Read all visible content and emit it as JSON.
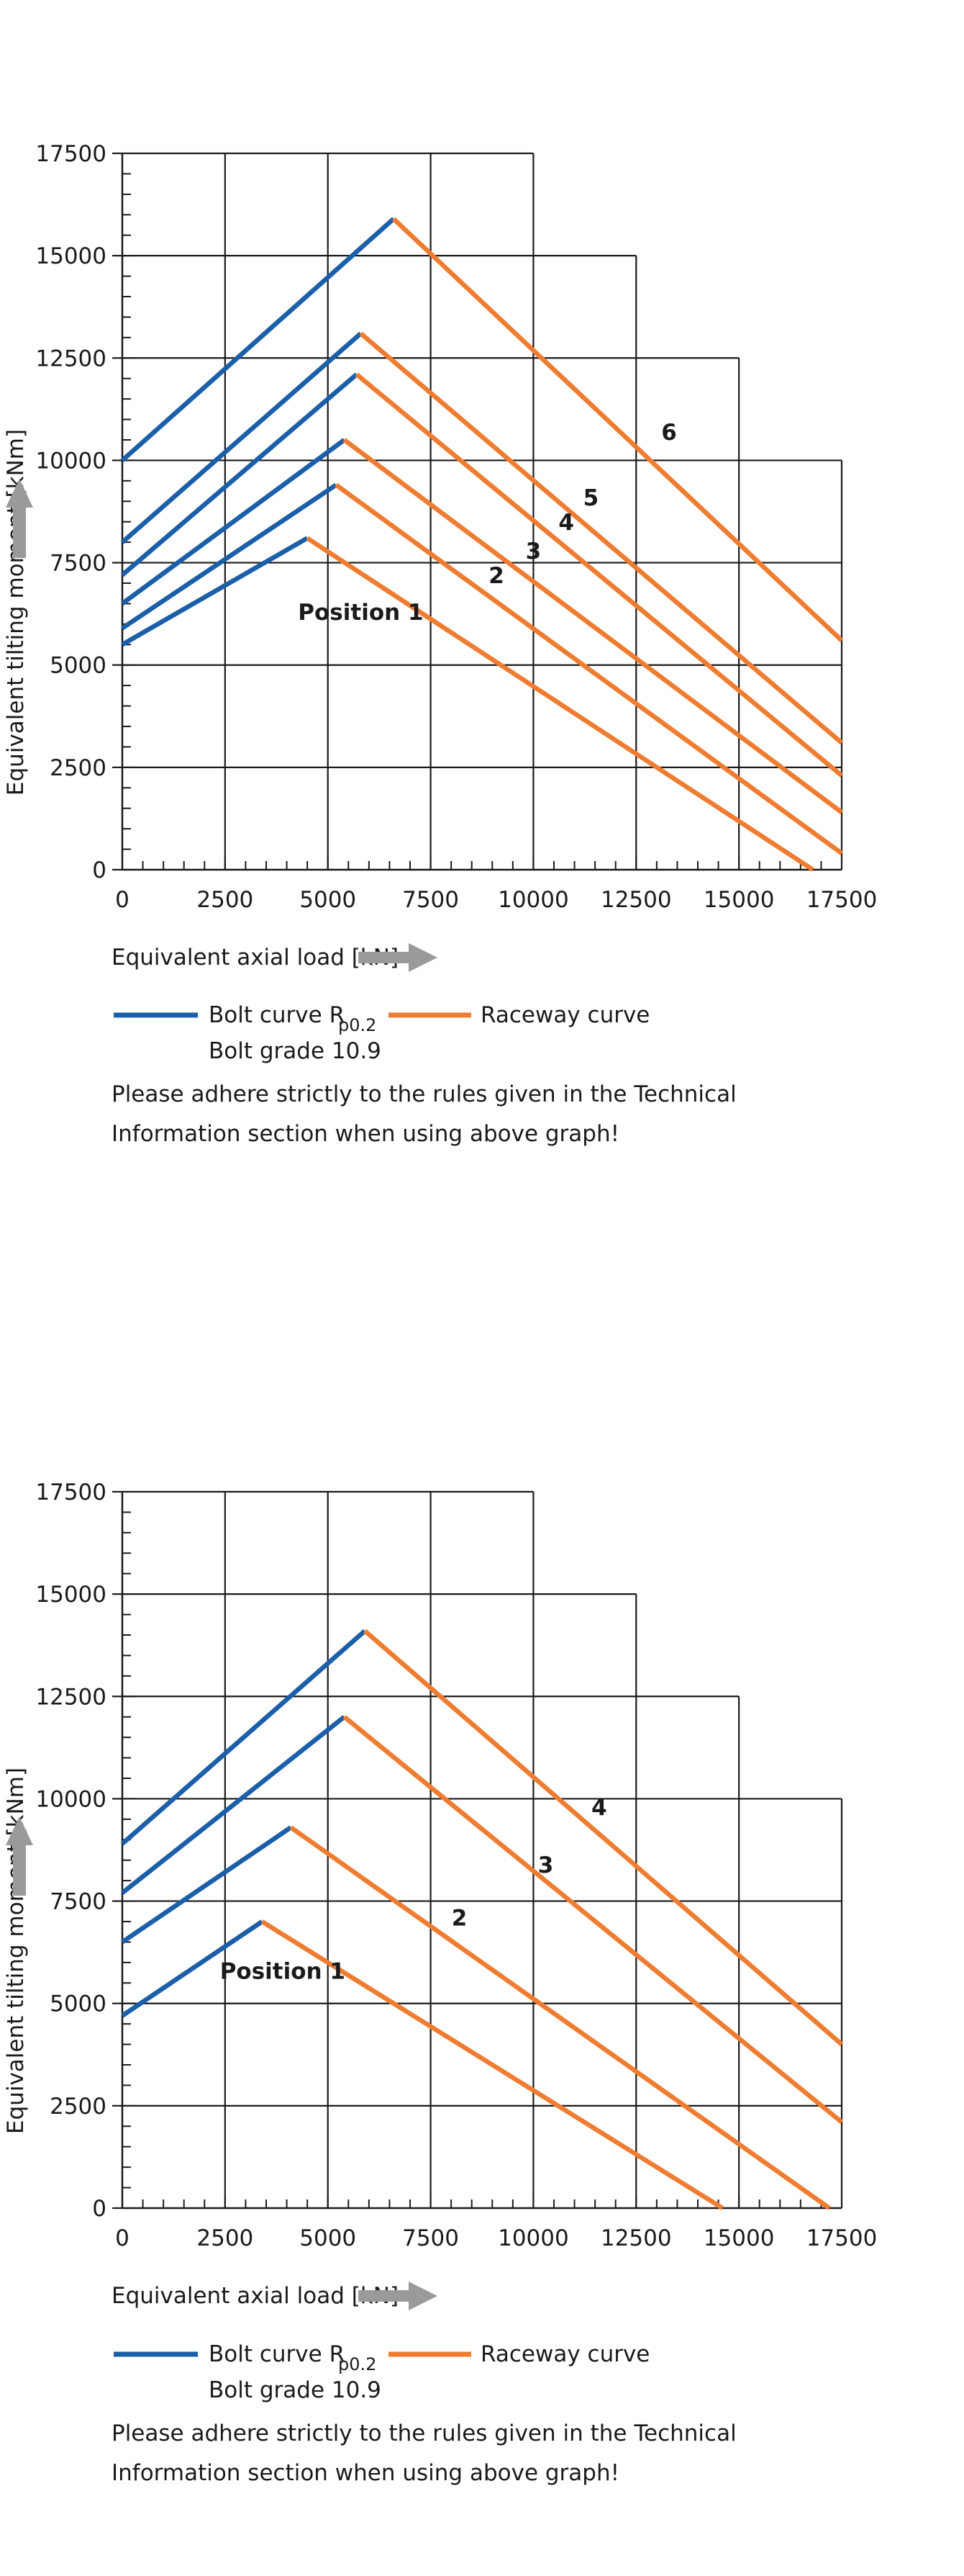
{
  "chart_data": [
    {
      "type": "line",
      "xlabel": "Equivalent axial load [kN]",
      "ylabel": "Equivalent tilting moment [kNm]",
      "xlim": [
        0,
        17500
      ],
      "ylim": [
        0,
        17500
      ],
      "x_ticks": [
        "0",
        "2500",
        "5000",
        "7500",
        "10000",
        "12500",
        "15000",
        "17500"
      ],
      "y_ticks": [
        "0",
        "2500",
        "5000",
        "7500",
        "10000",
        "12500",
        "15000",
        "17500"
      ],
      "grid": "stepped",
      "grid_x_tops": [
        17500,
        17500,
        17500,
        17500,
        17500,
        15000,
        12500,
        10000
      ],
      "series": [
        {
          "name": "Position 1",
          "bolt": [
            [
              0,
              5500
            ],
            [
              4500,
              8100
            ]
          ],
          "raceway": [
            [
              4500,
              8100
            ],
            [
              16800,
              0
            ]
          ]
        },
        {
          "name": "2",
          "bolt": [
            [
              0,
              5900
            ],
            [
              5200,
              9400
            ]
          ],
          "raceway": [
            [
              5200,
              9400
            ],
            [
              17500,
              400
            ]
          ]
        },
        {
          "name": "3",
          "bolt": [
            [
              0,
              6500
            ],
            [
              5400,
              10500
            ]
          ],
          "raceway": [
            [
              5400,
              10500
            ],
            [
              17500,
              1400
            ]
          ]
        },
        {
          "name": "4",
          "bolt": [
            [
              0,
              7200
            ],
            [
              5700,
              12100
            ]
          ],
          "raceway": [
            [
              5700,
              12100
            ],
            [
              17500,
              2300
            ]
          ]
        },
        {
          "name": "5",
          "bolt": [
            [
              0,
              8000
            ],
            [
              5800,
              13100
            ]
          ],
          "raceway": [
            [
              5800,
              13100
            ],
            [
              17500,
              3100
            ]
          ]
        },
        {
          "name": "6",
          "bolt": [
            [
              0,
              10000
            ],
            [
              6600,
              15900
            ]
          ],
          "raceway": [
            [
              6600,
              15900
            ],
            [
              17500,
              5600
            ]
          ]
        }
      ],
      "curve_labels": [
        {
          "text": "Position 1",
          "x": 5800,
          "y": 6100
        },
        {
          "text": "2",
          "x": 9100,
          "y": 7000
        },
        {
          "text": "3",
          "x": 10000,
          "y": 7600
        },
        {
          "text": "4",
          "x": 10800,
          "y": 8300
        },
        {
          "text": "5",
          "x": 11400,
          "y": 8900
        },
        {
          "text": "6",
          "x": 13300,
          "y": 10500
        }
      ],
      "legend": {
        "bolt_label": "Bolt curve  R",
        "bolt_subscript": "p0.2",
        "bolt_grade": "Bolt grade 10.9",
        "raceway_label": "Raceway curve",
        "bolt_color": "#1a5fa8",
        "raceway_color": "#ee7d31"
      },
      "note_line1": "Please adhere strictly to the rules given in the Technical",
      "note_line2": "Information section when using above graph!"
    },
    {
      "type": "line",
      "xlabel": "Equivalent axial load [kN]",
      "ylabel": "Equivalent tilting moment [kNm]",
      "xlim": [
        0,
        17500
      ],
      "ylim": [
        0,
        17500
      ],
      "x_ticks": [
        "0",
        "2500",
        "5000",
        "7500",
        "10000",
        "12500",
        "15000",
        "17500"
      ],
      "y_ticks": [
        "0",
        "2500",
        "5000",
        "7500",
        "10000",
        "12500",
        "15000",
        "17500"
      ],
      "grid": "stepped",
      "grid_x_tops": [
        17500,
        17500,
        17500,
        17500,
        17500,
        15000,
        12500,
        10000
      ],
      "series": [
        {
          "name": "Position 1",
          "bolt": [
            [
              0,
              4700
            ],
            [
              3400,
              7000
            ]
          ],
          "raceway": [
            [
              3400,
              7000
            ],
            [
              14600,
              0
            ]
          ]
        },
        {
          "name": "2",
          "bolt": [
            [
              0,
              6500
            ],
            [
              4100,
              9300
            ]
          ],
          "raceway": [
            [
              4100,
              9300
            ],
            [
              17200,
              0
            ]
          ]
        },
        {
          "name": "3",
          "bolt": [
            [
              0,
              7700
            ],
            [
              5400,
              12000
            ]
          ],
          "raceway": [
            [
              5400,
              12000
            ],
            [
              17500,
              2100
            ]
          ]
        },
        {
          "name": "4",
          "bolt": [
            [
              0,
              8900
            ],
            [
              5900,
              14100
            ]
          ],
          "raceway": [
            [
              5900,
              14100
            ],
            [
              17500,
              4000
            ]
          ]
        }
      ],
      "curve_labels": [
        {
          "text": "Position 1",
          "x": 3900,
          "y": 5600
        },
        {
          "text": "2",
          "x": 8200,
          "y": 6900
        },
        {
          "text": "3",
          "x": 10300,
          "y": 8200
        },
        {
          "text": "4",
          "x": 11600,
          "y": 9600
        }
      ],
      "legend": {
        "bolt_label": "Bolt curve  R",
        "bolt_subscript": "p0.2",
        "bolt_grade": "Bolt grade 10.9",
        "raceway_label": "Raceway curve",
        "bolt_color": "#1a5fa8",
        "raceway_color": "#ee7d31"
      },
      "note_line1": "Please adhere strictly to the rules given in the Technical",
      "note_line2": "Information section when using above graph!"
    }
  ]
}
